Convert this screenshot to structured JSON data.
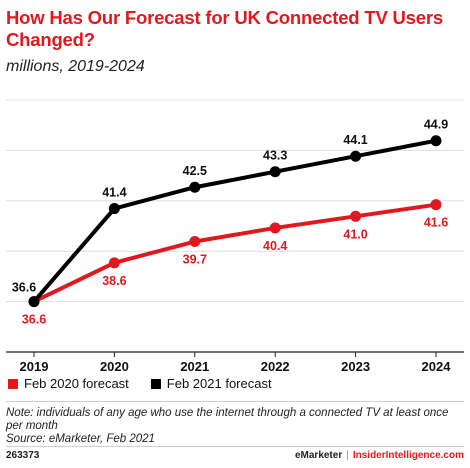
{
  "header": {
    "title": "How Has Our Forecast for UK Connected TV Users Changed?",
    "subtitle": "millions, 2019-2024"
  },
  "chart_data": {
    "type": "line",
    "x": [
      "2019",
      "2020",
      "2021",
      "2022",
      "2023",
      "2024"
    ],
    "series": [
      {
        "name": "Feb 2020 forecast",
        "color": "#e0191f",
        "values": [
          36.6,
          38.6,
          39.7,
          40.4,
          41.0,
          41.6
        ],
        "labels": [
          "36.6",
          "38.6",
          "39.7",
          "40.4",
          "41.0",
          "41.6"
        ]
      },
      {
        "name": "Feb 2021 forecast",
        "color": "#000000",
        "values": [
          36.6,
          41.4,
          42.5,
          43.3,
          44.1,
          44.9
        ],
        "labels": [
          "36.6",
          "41.4",
          "42.5",
          "43.3",
          "44.1",
          "44.9"
        ]
      }
    ],
    "ylim": [
      34,
      47
    ],
    "grid": "horizontal",
    "legend_position": "bottom-left"
  },
  "legend": {
    "items": [
      {
        "label": "Feb 2020 forecast",
        "color": "#e0191f"
      },
      {
        "label": "Feb 2021 forecast",
        "color": "#000000"
      }
    ]
  },
  "note": {
    "line1": "Note: individuals of any age who use the internet through a connected TV at least once per month",
    "source": "Source: eMarketer, Feb 2021"
  },
  "footer": {
    "chart_id": "263373",
    "brand_left": "eMarketer",
    "separator": "|",
    "brand_right": "InsiderIntelligence.com"
  }
}
